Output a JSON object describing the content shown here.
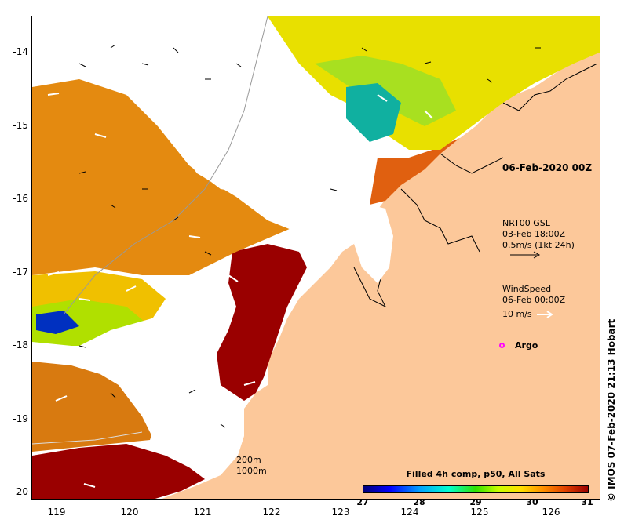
{
  "map": {
    "lat_ticks": [
      "-14",
      "-15",
      "-16",
      "-17",
      "-18",
      "-19",
      "-20"
    ],
    "lon_ticks": [
      "119",
      "120",
      "121",
      "122",
      "123",
      "124",
      "125",
      "126"
    ],
    "lat_range": [
      -20.15,
      -13.55
    ],
    "lon_range": [
      118.65,
      126.7
    ]
  },
  "annotations": {
    "date_title": "06-Feb-2020 00Z",
    "current_product": "NRT00 GSL",
    "current_time": "03-Feb 18:00Z",
    "current_scale": "0.5m/s (1kt 24h)",
    "wind_label": "WindSpeed",
    "wind_time": "06-Feb 00:00Z",
    "wind_scale": "10 m/s",
    "argo_label": "Argo",
    "contour_200": "200m",
    "contour_1000": "1000m"
  },
  "colorbar": {
    "title": "Filled 4h comp, p50, All Sats",
    "ticks": [
      "27",
      "28",
      "29",
      "30",
      "31"
    ],
    "min": 27,
    "max": 31
  },
  "credit": "© IMOS 07-Feb-2020 21:13 Hobart",
  "colors": {
    "land": "#fcc89a",
    "cloud": "#ffffff",
    "sst_hot": "#9a0000",
    "sst_warm": "#e07a00",
    "sst_mid": "#f0b000",
    "sst_cool": "#c8e000",
    "sst_cold": "#00a0c0",
    "argo": "#ff00ff"
  }
}
